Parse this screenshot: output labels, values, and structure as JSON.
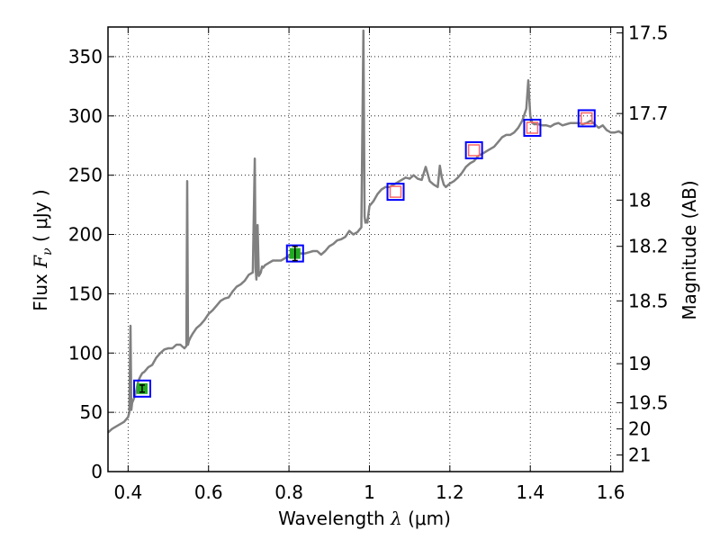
{
  "chart_data": {
    "type": "line",
    "xlabel": "Wavelength",
    "xlabel_symbol": "λ",
    "xlabel_unit": "(μm)",
    "ylabel": "Flux",
    "ylabel_symbol": "F",
    "ylabel_subscript": "ν",
    "ylabel_unit": "( μJy )",
    "y2label": "Magnitude (AB)",
    "xlim": [
      0.35,
      1.63
    ],
    "ylim": [
      0,
      375
    ],
    "grid": true,
    "grid_style": "dotted",
    "x_ticks": [
      0.4,
      0.6,
      0.8,
      1.0,
      1.2,
      1.4,
      1.6
    ],
    "x_tick_labels": [
      "0.4",
      "0.6",
      "0.8",
      "1",
      "1.2",
      "1.4",
      "1.6"
    ],
    "y_ticks": [
      0,
      50,
      100,
      150,
      200,
      250,
      300,
      350
    ],
    "y_tick_labels": [
      "0",
      "50",
      "100",
      "150",
      "200",
      "250",
      "300",
      "350"
    ],
    "y2_ticks": [
      {
        "flux": 370,
        "label": "17.5"
      },
      {
        "flux": 302,
        "label": "17.7"
      },
      {
        "flux": 229,
        "label": "18"
      },
      {
        "flux": 190,
        "label": "18.2"
      },
      {
        "flux": 144,
        "label": "18.5"
      },
      {
        "flux": 91,
        "label": "19"
      },
      {
        "flux": 58,
        "label": "19.5"
      },
      {
        "flux": 36,
        "label": "20"
      },
      {
        "flux": 14,
        "label": "21"
      }
    ],
    "series": [
      {
        "style": "spectrum",
        "color": "#808080",
        "x": [
          0.35,
          0.36,
          0.37,
          0.38,
          0.39,
          0.4,
          0.403,
          0.406,
          0.408,
          0.41,
          0.415,
          0.42,
          0.425,
          0.43,
          0.435,
          0.44,
          0.445,
          0.45,
          0.46,
          0.47,
          0.48,
          0.49,
          0.5,
          0.51,
          0.52,
          0.53,
          0.54,
          0.545,
          0.547,
          0.549,
          0.551,
          0.555,
          0.56,
          0.57,
          0.58,
          0.59,
          0.6,
          0.61,
          0.62,
          0.63,
          0.64,
          0.65,
          0.66,
          0.67,
          0.68,
          0.69,
          0.7,
          0.71,
          0.715,
          0.717,
          0.719,
          0.722,
          0.725,
          0.73,
          0.733,
          0.736,
          0.74,
          0.75,
          0.76,
          0.77,
          0.78,
          0.79,
          0.8,
          0.81,
          0.82,
          0.83,
          0.84,
          0.85,
          0.86,
          0.87,
          0.88,
          0.89,
          0.9,
          0.91,
          0.92,
          0.93,
          0.94,
          0.95,
          0.96,
          0.97,
          0.98,
          0.985,
          0.988,
          0.99,
          0.992,
          0.995,
          1.0,
          1.01,
          1.02,
          1.03,
          1.04,
          1.05,
          1.06,
          1.07,
          1.08,
          1.09,
          1.1,
          1.11,
          1.12,
          1.13,
          1.14,
          1.15,
          1.16,
          1.17,
          1.175,
          1.18,
          1.185,
          1.19,
          1.2,
          1.21,
          1.22,
          1.23,
          1.24,
          1.25,
          1.26,
          1.27,
          1.28,
          1.29,
          1.3,
          1.31,
          1.32,
          1.33,
          1.34,
          1.35,
          1.36,
          1.37,
          1.38,
          1.39,
          1.395,
          1.4,
          1.405,
          1.41,
          1.42,
          1.43,
          1.44,
          1.45,
          1.46,
          1.47,
          1.48,
          1.49,
          1.5,
          1.51,
          1.52,
          1.53,
          1.54,
          1.55,
          1.56,
          1.57,
          1.58,
          1.59,
          1.6,
          1.61,
          1.62,
          1.63
        ],
        "y": [
          33,
          36,
          38,
          40,
          42,
          46,
          50,
          123,
          52,
          58,
          62,
          68,
          76,
          80,
          83,
          84,
          86,
          88,
          90,
          96,
          100,
          103,
          104,
          104,
          107,
          107,
          104,
          106,
          245,
          107,
          110,
          113,
          116,
          121,
          124,
          128,
          133,
          136,
          140,
          144,
          146,
          147,
          152,
          156,
          158,
          161,
          166,
          168,
          264,
          172,
          162,
          208,
          165,
          168,
          173,
          172,
          174,
          176,
          178,
          178,
          178,
          180,
          182,
          182,
          184,
          184,
          184,
          185,
          186,
          186,
          183,
          186,
          190,
          192,
          195,
          196,
          198,
          203,
          200,
          202,
          206,
          372,
          215,
          210,
          212,
          210,
          224,
          228,
          234,
          238,
          240,
          240,
          242,
          244,
          246,
          248,
          247,
          250,
          247,
          246,
          257,
          245,
          242,
          240,
          258,
          248,
          242,
          240,
          243,
          245,
          248,
          252,
          257,
          260,
          262,
          266,
          268,
          270,
          272,
          274,
          278,
          282,
          284,
          284,
          286,
          290,
          296,
          306,
          330,
          300,
          294,
          293,
          293,
          292,
          292,
          291,
          293,
          294,
          292,
          293,
          294,
          294,
          294,
          293,
          294,
          296,
          293,
          290,
          292,
          288,
          286,
          286,
          287,
          285
        ]
      }
    ],
    "photometry": [
      {
        "x": 0.435,
        "y": 70,
        "err": 3,
        "filled": true,
        "fill": "#22aa22",
        "box": "#0000ff"
      },
      {
        "x": 0.815,
        "y": 184,
        "err": 6,
        "filled": true,
        "fill": "#22aa22",
        "box": "#0000ff"
      },
      {
        "x": 1.065,
        "y": 236,
        "filled": false,
        "inner": "#ff6666",
        "box": "#0000ff"
      },
      {
        "x": 1.26,
        "y": 271,
        "filled": false,
        "inner": "#ff6666",
        "box": "#0000ff"
      },
      {
        "x": 1.405,
        "y": 290,
        "filled": false,
        "inner": "#ff6666",
        "box": "#0000ff"
      },
      {
        "x": 1.54,
        "y": 298,
        "filled": false,
        "inner": "#ff6666",
        "box": "#0000ff"
      }
    ]
  }
}
